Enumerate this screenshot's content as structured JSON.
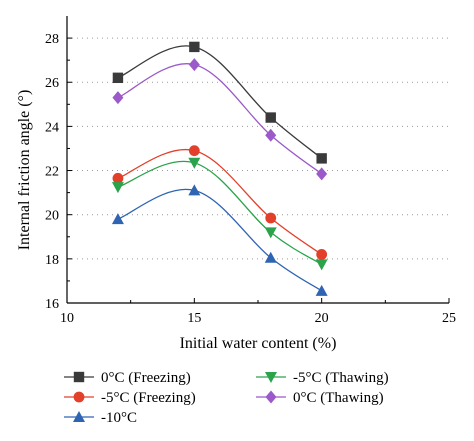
{
  "chart_data": {
    "type": "line",
    "title": "",
    "xlabel": "Initial water content (%)",
    "ylabel": "Internal friction angle (°)",
    "xlim": [
      10,
      25
    ],
    "ylim": [
      16,
      29
    ],
    "xticks": [
      "10",
      "15",
      "20",
      "25"
    ],
    "yticks": [
      "16",
      "18",
      "20",
      "22",
      "24",
      "26",
      "28"
    ],
    "grid": "dotted horizontal",
    "legend_position": "bottom",
    "x": [
      12,
      15,
      18,
      20
    ],
    "series": [
      {
        "name": "0°C (Freezing)",
        "values": [
          26.2,
          27.6,
          24.4,
          22.55
        ],
        "color": "#3a3a3a",
        "marker": "square"
      },
      {
        "name": "-5°C (Freezing)",
        "values": [
          21.65,
          22.9,
          19.85,
          18.2
        ],
        "color": "#e2402b",
        "marker": "circle"
      },
      {
        "name": "-10°C",
        "values": [
          19.8,
          21.1,
          18.05,
          16.55
        ],
        "color": "#2f64b3",
        "marker": "triangle-up"
      },
      {
        "name": "-5°C (Thawing)",
        "values": [
          21.25,
          22.35,
          19.2,
          17.75
        ],
        "color": "#2aa34a",
        "marker": "triangle-down"
      },
      {
        "name": "0°C (Thawing)",
        "values": [
          25.3,
          26.8,
          23.6,
          21.85
        ],
        "color": "#9b59c9",
        "marker": "diamond"
      }
    ]
  }
}
